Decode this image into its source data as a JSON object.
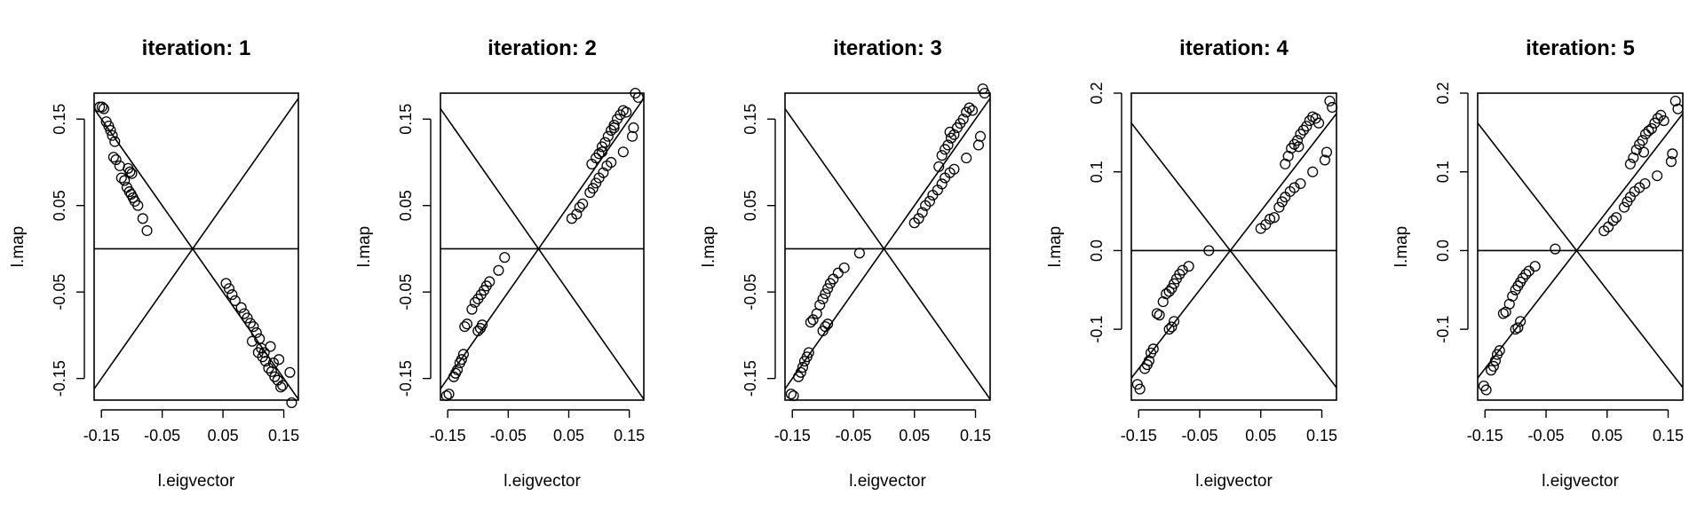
{
  "figure": {
    "stroke_color": "#000000",
    "background": "#ffffff"
  },
  "chart_data": [
    {
      "type": "scatter",
      "title": "iteration: 1",
      "xlabel": "l.eigvector",
      "ylabel": "l.map",
      "xlim": [
        -0.162,
        0.174
      ],
      "ylim": [
        -0.175,
        0.18
      ],
      "xticks": [
        -0.15,
        -0.05,
        0.05,
        0.15
      ],
      "xtick_labels": [
        "-0.15",
        "-0.05",
        "0.05",
        "0.15"
      ],
      "yticks": [
        -0.15,
        -0.05,
        0.05,
        0.15
      ],
      "ytick_labels": [
        "-0.15",
        "-0.05",
        "0.05",
        "0.15"
      ],
      "lines": [
        {
          "kind": "hline",
          "value": 0
        },
        {
          "kind": "abline",
          "slope": 1
        },
        {
          "kind": "abline",
          "slope": -1
        }
      ],
      "points": [
        [
          -0.153,
          0.164
        ],
        [
          -0.149,
          0.164
        ],
        [
          -0.146,
          0.162
        ],
        [
          -0.142,
          0.147
        ],
        [
          -0.138,
          0.142
        ],
        [
          -0.135,
          0.137
        ],
        [
          -0.132,
          0.131
        ],
        [
          -0.128,
          0.124
        ],
        [
          -0.13,
          0.106
        ],
        [
          -0.126,
          0.103
        ],
        [
          -0.12,
          0.096
        ],
        [
          -0.117,
          0.082
        ],
        [
          -0.112,
          0.079
        ],
        [
          -0.106,
          0.093
        ],
        [
          -0.103,
          0.089
        ],
        [
          -0.1,
          0.087
        ],
        [
          -0.108,
          0.071
        ],
        [
          -0.104,
          0.066
        ],
        [
          -0.101,
          0.063
        ],
        [
          -0.098,
          0.059
        ],
        [
          -0.095,
          0.055
        ],
        [
          -0.09,
          0.05
        ],
        [
          -0.082,
          0.035
        ],
        [
          -0.075,
          0.021
        ],
        [
          0.055,
          -0.04
        ],
        [
          0.06,
          -0.046
        ],
        [
          0.065,
          -0.053
        ],
        [
          0.07,
          -0.06
        ],
        [
          0.08,
          -0.068
        ],
        [
          0.085,
          -0.075
        ],
        [
          0.09,
          -0.08
        ],
        [
          0.095,
          -0.086
        ],
        [
          0.1,
          -0.09
        ],
        [
          0.105,
          -0.097
        ],
        [
          0.11,
          -0.104
        ],
        [
          0.113,
          -0.115
        ],
        [
          0.108,
          -0.12
        ],
        [
          0.115,
          -0.125
        ],
        [
          0.12,
          -0.13
        ],
        [
          0.125,
          -0.138
        ],
        [
          0.13,
          -0.142
        ],
        [
          0.135,
          -0.148
        ],
        [
          0.14,
          -0.152
        ],
        [
          0.145,
          -0.16
        ],
        [
          0.128,
          -0.113
        ],
        [
          0.142,
          -0.128
        ],
        [
          0.16,
          -0.143
        ],
        [
          0.163,
          -0.178
        ],
        [
          0.098,
          -0.107
        ],
        [
          0.118,
          -0.12
        ],
        [
          0.133,
          -0.132
        ],
        [
          0.148,
          -0.158
        ]
      ]
    },
    {
      "type": "scatter",
      "title": "iteration: 2",
      "xlabel": "l.eigvector",
      "ylabel": "l.map",
      "xlim": [
        -0.162,
        0.174
      ],
      "ylim": [
        -0.175,
        0.18
      ],
      "xticks": [
        -0.15,
        -0.05,
        0.05,
        0.15
      ],
      "xtick_labels": [
        "-0.15",
        "-0.05",
        "0.05",
        "0.15"
      ],
      "yticks": [
        -0.15,
        -0.05,
        0.05,
        0.15
      ],
      "ytick_labels": [
        "-0.15",
        "-0.05",
        "0.05",
        "0.15"
      ],
      "lines": [
        {
          "kind": "hline",
          "value": 0
        },
        {
          "kind": "abline",
          "slope": 1
        },
        {
          "kind": "abline",
          "slope": -1
        }
      ],
      "points": [
        [
          -0.152,
          -0.17
        ],
        [
          -0.148,
          -0.168
        ],
        [
          -0.14,
          -0.148
        ],
        [
          -0.137,
          -0.144
        ],
        [
          -0.134,
          -0.14
        ],
        [
          -0.13,
          -0.132
        ],
        [
          -0.127,
          -0.128
        ],
        [
          -0.124,
          -0.122
        ],
        [
          -0.122,
          -0.09
        ],
        [
          -0.118,
          -0.087
        ],
        [
          -0.1,
          -0.095
        ],
        [
          -0.096,
          -0.092
        ],
        [
          -0.093,
          -0.088
        ],
        [
          -0.11,
          -0.07
        ],
        [
          -0.105,
          -0.062
        ],
        [
          -0.1,
          -0.058
        ],
        [
          -0.095,
          -0.053
        ],
        [
          -0.09,
          -0.048
        ],
        [
          -0.086,
          -0.043
        ],
        [
          -0.081,
          -0.038
        ],
        [
          -0.066,
          -0.025
        ],
        [
          -0.056,
          -0.01
        ],
        [
          0.055,
          0.035
        ],
        [
          0.063,
          0.04
        ],
        [
          0.068,
          0.048
        ],
        [
          0.073,
          0.052
        ],
        [
          0.085,
          0.065
        ],
        [
          0.09,
          0.07
        ],
        [
          0.095,
          0.076
        ],
        [
          0.1,
          0.082
        ],
        [
          0.107,
          0.088
        ],
        [
          0.113,
          0.096
        ],
        [
          0.12,
          0.1
        ],
        [
          0.14,
          0.112
        ],
        [
          0.155,
          0.13
        ],
        [
          0.157,
          0.14
        ],
        [
          0.16,
          0.18
        ],
        [
          0.165,
          0.175
        ],
        [
          0.088,
          0.098
        ],
        [
          0.095,
          0.105
        ],
        [
          0.1,
          0.11
        ],
        [
          0.105,
          0.118
        ],
        [
          0.11,
          0.123
        ],
        [
          0.115,
          0.13
        ],
        [
          0.12,
          0.137
        ],
        [
          0.125,
          0.143
        ],
        [
          0.13,
          0.15
        ],
        [
          0.135,
          0.155
        ],
        [
          0.14,
          0.16
        ],
        [
          0.145,
          0.158
        ],
        [
          0.105,
          0.112
        ],
        [
          0.125,
          0.14
        ]
      ]
    },
    {
      "type": "scatter",
      "title": "iteration: 3",
      "xlabel": "l.eigvector",
      "ylabel": "l.map",
      "xlim": [
        -0.162,
        0.174
      ],
      "ylim": [
        -0.175,
        0.18
      ],
      "xticks": [
        -0.15,
        -0.05,
        0.05,
        0.15
      ],
      "xtick_labels": [
        "-0.15",
        "-0.05",
        "0.05",
        "0.15"
      ],
      "yticks": [
        -0.15,
        -0.05,
        0.05,
        0.15
      ],
      "ytick_labels": [
        "-0.15",
        "-0.05",
        "0.05",
        "0.15"
      ],
      "lines": [
        {
          "kind": "hline",
          "value": 0
        },
        {
          "kind": "abline",
          "slope": 1
        },
        {
          "kind": "abline",
          "slope": -1
        }
      ],
      "points": [
        [
          -0.152,
          -0.168
        ],
        [
          -0.148,
          -0.17
        ],
        [
          -0.14,
          -0.148
        ],
        [
          -0.136,
          -0.143
        ],
        [
          -0.133,
          -0.137
        ],
        [
          -0.13,
          -0.13
        ],
        [
          -0.126,
          -0.125
        ],
        [
          -0.123,
          -0.12
        ],
        [
          -0.12,
          -0.085
        ],
        [
          -0.116,
          -0.082
        ],
        [
          -0.1,
          -0.095
        ],
        [
          -0.096,
          -0.09
        ],
        [
          -0.092,
          -0.087
        ],
        [
          -0.11,
          -0.075
        ],
        [
          -0.105,
          -0.065
        ],
        [
          -0.1,
          -0.058
        ],
        [
          -0.096,
          -0.052
        ],
        [
          -0.092,
          -0.046
        ],
        [
          -0.088,
          -0.04
        ],
        [
          -0.083,
          -0.035
        ],
        [
          -0.075,
          -0.028
        ],
        [
          -0.065,
          -0.022
        ],
        [
          -0.04,
          -0.005
        ],
        [
          0.05,
          0.03
        ],
        [
          0.057,
          0.035
        ],
        [
          0.063,
          0.042
        ],
        [
          0.068,
          0.05
        ],
        [
          0.075,
          0.055
        ],
        [
          0.08,
          0.062
        ],
        [
          0.088,
          0.068
        ],
        [
          0.095,
          0.075
        ],
        [
          0.1,
          0.082
        ],
        [
          0.108,
          0.088
        ],
        [
          0.115,
          0.092
        ],
        [
          0.135,
          0.105
        ],
        [
          0.155,
          0.12
        ],
        [
          0.158,
          0.13
        ],
        [
          0.162,
          0.185
        ],
        [
          0.165,
          0.18
        ],
        [
          0.09,
          0.095
        ],
        [
          0.095,
          0.108
        ],
        [
          0.1,
          0.115
        ],
        [
          0.105,
          0.12
        ],
        [
          0.11,
          0.128
        ],
        [
          0.115,
          0.132
        ],
        [
          0.12,
          0.14
        ],
        [
          0.125,
          0.145
        ],
        [
          0.13,
          0.15
        ],
        [
          0.135,
          0.158
        ],
        [
          0.14,
          0.163
        ],
        [
          0.145,
          0.16
        ],
        [
          0.108,
          0.135
        ]
      ]
    },
    {
      "type": "scatter",
      "title": "iteration: 4",
      "xlabel": "l.eigvector",
      "ylabel": "l.map",
      "xlim": [
        -0.162,
        0.174
      ],
      "ylim": [
        -0.19,
        0.2
      ],
      "xticks": [
        -0.15,
        -0.05,
        0.05,
        0.15
      ],
      "xtick_labels": [
        "-0.15",
        "-0.05",
        "0.05",
        "0.15"
      ],
      "yticks": [
        -0.1,
        0.0,
        0.1,
        0.2
      ],
      "ytick_labels": [
        "-0.1",
        "0.0",
        "0.1",
        "0.2"
      ],
      "lines": [
        {
          "kind": "hline",
          "value": 0
        },
        {
          "kind": "abline",
          "slope": 1
        },
        {
          "kind": "abline",
          "slope": -1
        }
      ],
      "points": [
        [
          -0.152,
          -0.17
        ],
        [
          -0.148,
          -0.176
        ],
        [
          -0.14,
          -0.15
        ],
        [
          -0.136,
          -0.145
        ],
        [
          -0.133,
          -0.14
        ],
        [
          -0.13,
          -0.13
        ],
        [
          -0.126,
          -0.125
        ],
        [
          -0.12,
          -0.08
        ],
        [
          -0.116,
          -0.082
        ],
        [
          -0.1,
          -0.1
        ],
        [
          -0.096,
          -0.097
        ],
        [
          -0.092,
          -0.09
        ],
        [
          -0.11,
          -0.065
        ],
        [
          -0.105,
          -0.055
        ],
        [
          -0.1,
          -0.052
        ],
        [
          -0.096,
          -0.048
        ],
        [
          -0.092,
          -0.042
        ],
        [
          -0.088,
          -0.036
        ],
        [
          -0.083,
          -0.03
        ],
        [
          -0.078,
          -0.025
        ],
        [
          -0.068,
          -0.02
        ],
        [
          -0.035,
          0.0
        ],
        [
          0.05,
          0.028
        ],
        [
          0.058,
          0.033
        ],
        [
          0.065,
          0.04
        ],
        [
          0.072,
          0.042
        ],
        [
          0.08,
          0.055
        ],
        [
          0.085,
          0.062
        ],
        [
          0.09,
          0.068
        ],
        [
          0.098,
          0.075
        ],
        [
          0.105,
          0.08
        ],
        [
          0.115,
          0.085
        ],
        [
          0.135,
          0.1
        ],
        [
          0.155,
          0.115
        ],
        [
          0.158,
          0.125
        ],
        [
          0.163,
          0.19
        ],
        [
          0.167,
          0.182
        ],
        [
          0.09,
          0.11
        ],
        [
          0.095,
          0.12
        ],
        [
          0.1,
          0.13
        ],
        [
          0.105,
          0.135
        ],
        [
          0.11,
          0.14
        ],
        [
          0.115,
          0.148
        ],
        [
          0.12,
          0.153
        ],
        [
          0.125,
          0.158
        ],
        [
          0.13,
          0.165
        ],
        [
          0.135,
          0.17
        ],
        [
          0.14,
          0.168
        ],
        [
          0.145,
          0.162
        ],
        [
          0.112,
          0.132
        ]
      ]
    },
    {
      "type": "scatter",
      "title": "iteration: 5",
      "xlabel": "l.eigvector",
      "ylabel": "l.map",
      "xlim": [
        -0.162,
        0.174
      ],
      "ylim": [
        -0.19,
        0.2
      ],
      "xticks": [
        -0.15,
        -0.05,
        0.05,
        0.15
      ],
      "xtick_labels": [
        "-0.15",
        "-0.05",
        "0.05",
        "0.15"
      ],
      "yticks": [
        -0.1,
        0.0,
        0.1,
        0.2
      ],
      "ytick_labels": [
        "-0.1",
        "0.0",
        "0.1",
        "0.2"
      ],
      "lines": [
        {
          "kind": "hline",
          "value": 0
        },
        {
          "kind": "abline",
          "slope": 1
        },
        {
          "kind": "abline",
          "slope": -1
        }
      ],
      "points": [
        [
          -0.152,
          -0.172
        ],
        [
          -0.148,
          -0.177
        ],
        [
          -0.14,
          -0.152
        ],
        [
          -0.136,
          -0.147
        ],
        [
          -0.133,
          -0.14
        ],
        [
          -0.13,
          -0.132
        ],
        [
          -0.126,
          -0.127
        ],
        [
          -0.12,
          -0.08
        ],
        [
          -0.116,
          -0.078
        ],
        [
          -0.1,
          -0.1
        ],
        [
          -0.096,
          -0.098
        ],
        [
          -0.092,
          -0.09
        ],
        [
          -0.11,
          -0.068
        ],
        [
          -0.105,
          -0.058
        ],
        [
          -0.1,
          -0.05
        ],
        [
          -0.096,
          -0.045
        ],
        [
          -0.092,
          -0.04
        ],
        [
          -0.088,
          -0.035
        ],
        [
          -0.083,
          -0.03
        ],
        [
          -0.078,
          -0.026
        ],
        [
          -0.068,
          -0.02
        ],
        [
          -0.035,
          0.002
        ],
        [
          0.045,
          0.025
        ],
        [
          0.052,
          0.03
        ],
        [
          0.06,
          0.038
        ],
        [
          0.065,
          0.042
        ],
        [
          0.078,
          0.055
        ],
        [
          0.083,
          0.062
        ],
        [
          0.088,
          0.068
        ],
        [
          0.095,
          0.075
        ],
        [
          0.103,
          0.08
        ],
        [
          0.112,
          0.085
        ],
        [
          0.132,
          0.095
        ],
        [
          0.155,
          0.113
        ],
        [
          0.157,
          0.123
        ],
        [
          0.162,
          0.19
        ],
        [
          0.166,
          0.18
        ],
        [
          0.088,
          0.11
        ],
        [
          0.093,
          0.118
        ],
        [
          0.098,
          0.128
        ],
        [
          0.103,
          0.135
        ],
        [
          0.108,
          0.14
        ],
        [
          0.113,
          0.148
        ],
        [
          0.118,
          0.152
        ],
        [
          0.123,
          0.155
        ],
        [
          0.128,
          0.162
        ],
        [
          0.133,
          0.168
        ],
        [
          0.138,
          0.172
        ],
        [
          0.143,
          0.165
        ],
        [
          0.11,
          0.125
        ]
      ]
    }
  ]
}
